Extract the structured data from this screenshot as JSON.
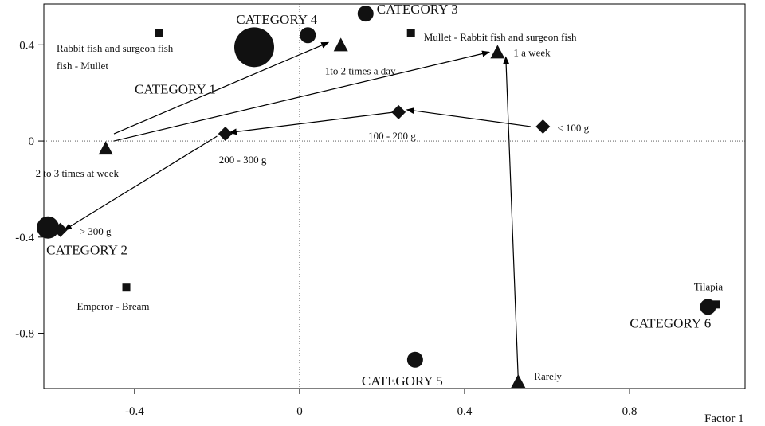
{
  "chart_data": {
    "type": "scatter",
    "title": "",
    "xlabel": "Factor 1",
    "ylabel": "",
    "xlim": [
      -0.62,
      1.08
    ],
    "ylim": [
      -1.03,
      0.57
    ],
    "x_ticks": [
      {
        "v": -0.4,
        "label": "-0.4"
      },
      {
        "v": 0,
        "label": "0"
      },
      {
        "v": 0.4,
        "label": "0.4"
      },
      {
        "v": 0.8,
        "label": "0.8"
      }
    ],
    "y_ticks": [
      {
        "v": 0.4,
        "label": "0.4"
      },
      {
        "v": 0,
        "label": "0"
      },
      {
        "v": -0.4,
        "label": "-0.4"
      },
      {
        "v": -0.8,
        "label": "-0.8"
      }
    ],
    "zero_lines": true,
    "categories": [
      {
        "label": "CATEGORY 1",
        "x": -0.11,
        "y": 0.39,
        "size": 3
      },
      {
        "label": "CATEGORY 2",
        "x": -0.61,
        "y": -0.36,
        "size": 2
      },
      {
        "label": "CATEGORY 3",
        "x": 0.16,
        "y": 0.53,
        "size": 1
      },
      {
        "label": "CATEGORY 4",
        "x": 0.02,
        "y": 0.44,
        "size": 1
      },
      {
        "label": "CATEGORY 5",
        "x": 0.28,
        "y": -0.91,
        "size": 1
      },
      {
        "label": "CATEGORY 6",
        "x": 0.99,
        "y": -0.69,
        "size": 1
      }
    ],
    "species": [
      {
        "label": "Rabbit fish and surgeon fish - Mullet",
        "x": -0.34,
        "y": 0.45
      },
      {
        "label": "Mullet - Rabbit fish and surgeon  fish",
        "x": 0.27,
        "y": 0.45
      },
      {
        "label": "Emperor - Bream",
        "x": -0.42,
        "y": -0.61
      },
      {
        "label": "Tilapia",
        "x": 1.01,
        "y": -0.68
      }
    ],
    "frequency": [
      {
        "label": "1to 2 times a day",
        "x": 0.1,
        "y": 0.4
      },
      {
        "label": "1 a week",
        "x": 0.48,
        "y": 0.37
      },
      {
        "label": "2  to 3  times at week",
        "x": -0.47,
        "y": -0.03
      },
      {
        "label": "Rarely",
        "x": 0.53,
        "y": -1.0
      }
    ],
    "portion": [
      {
        "label": "< 100 g",
        "x": 0.59,
        "y": 0.06
      },
      {
        "label": "100 - 200 g",
        "x": 0.24,
        "y": 0.12
      },
      {
        "label": "200 - 300 g",
        "x": -0.18,
        "y": 0.03
      },
      {
        "label": ">  300 g",
        "x": -0.58,
        "y": -0.37
      }
    ],
    "arrows": [
      {
        "from": [
          -0.45,
          0.03
        ],
        "to": [
          0.07,
          0.41
        ]
      },
      {
        "from": [
          -0.45,
          0.0
        ],
        "to": [
          0.46,
          0.37
        ]
      },
      {
        "from": [
          0.56,
          0.06
        ],
        "to": [
          0.26,
          0.13
        ]
      },
      {
        "from": [
          0.23,
          0.12
        ],
        "to": [
          -0.17,
          0.035
        ]
      },
      {
        "from": [
          -0.2,
          0.02
        ],
        "to": [
          -0.57,
          -0.37
        ]
      },
      {
        "from": [
          0.53,
          -0.99
        ],
        "to": [
          0.5,
          0.35
        ]
      }
    ]
  }
}
